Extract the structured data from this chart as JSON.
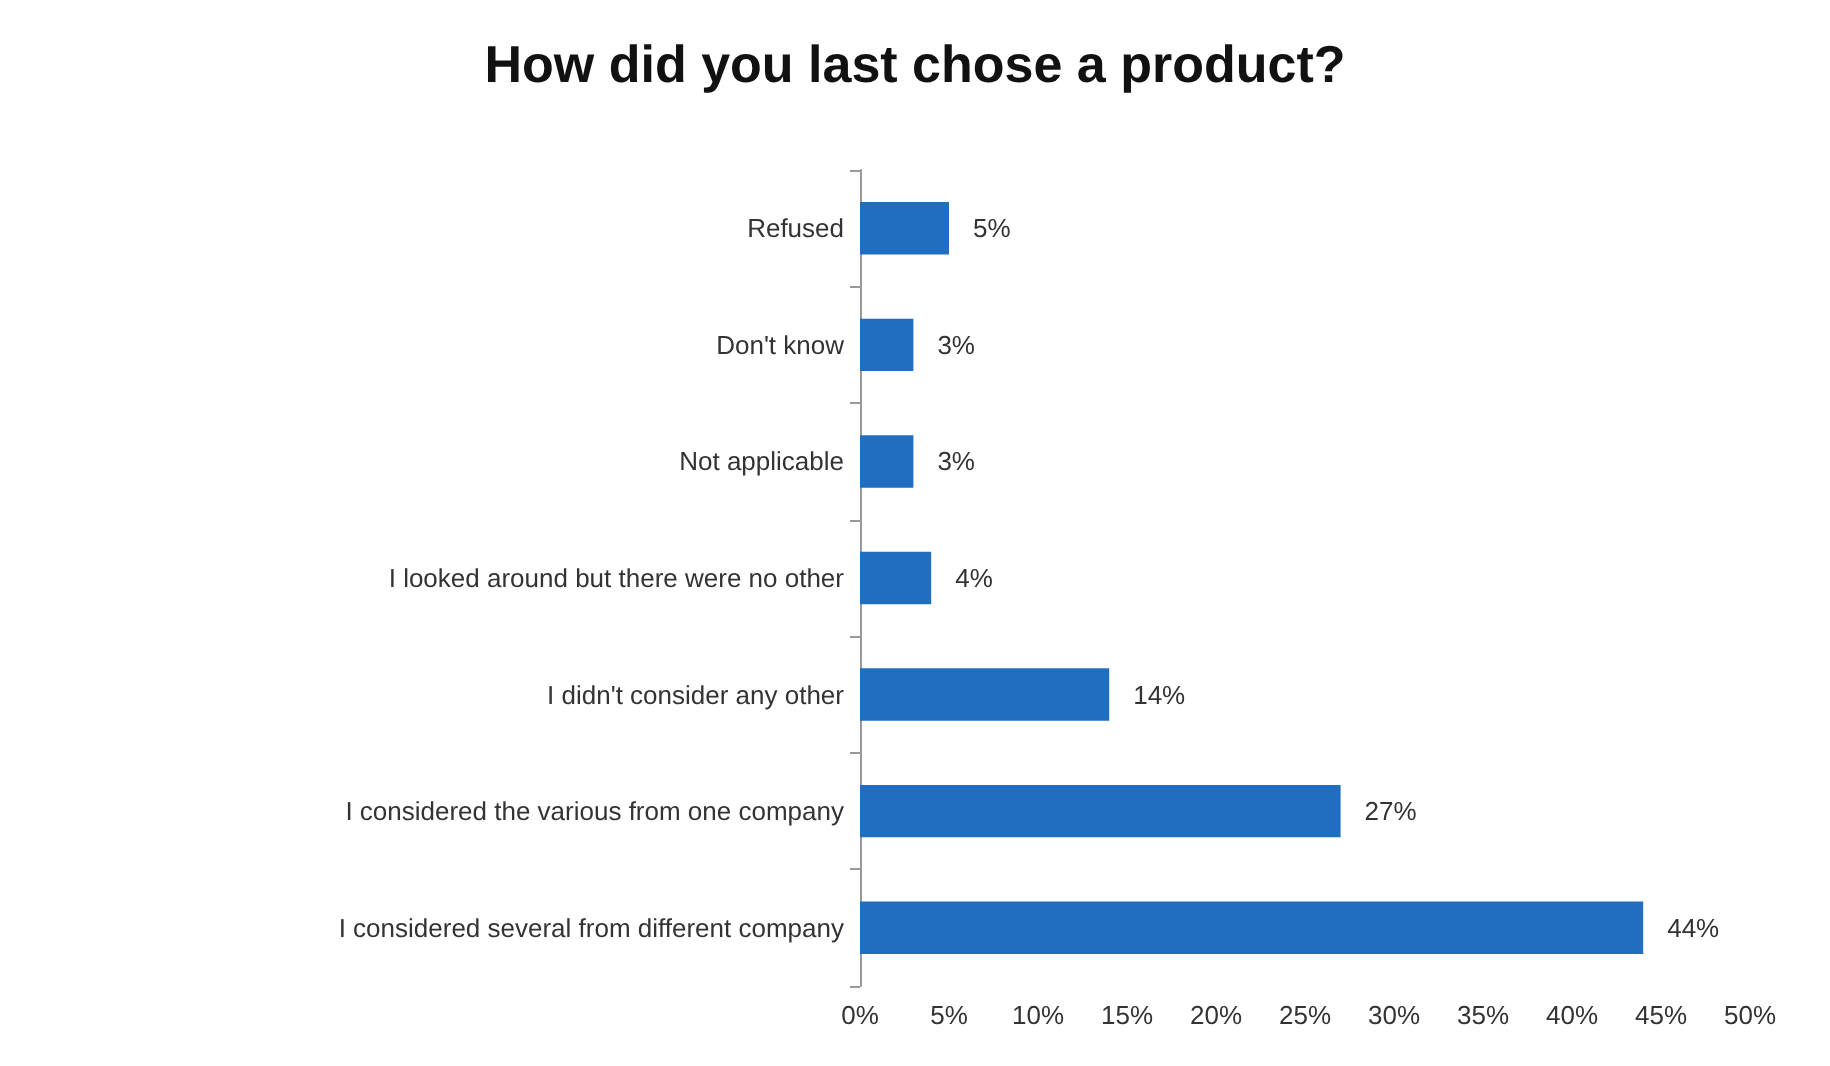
{
  "chart_data": {
    "type": "bar",
    "orientation": "horizontal",
    "title": "How did you last chose a product?",
    "categories": [
      "Refused",
      "Don't know",
      "Not applicable",
      "I looked around but there were no other",
      "I didn't consider any other",
      "I considered the various from one company",
      "I considered several from different company"
    ],
    "values": [
      5,
      3,
      3,
      4,
      14,
      27,
      44
    ],
    "value_labels": [
      "5%",
      "3%",
      "3%",
      "4%",
      "14%",
      "27%",
      "44%"
    ],
    "color": "#1f6ebf",
    "xlim": [
      0,
      50
    ],
    "xticks": [
      {
        "value": 0,
        "label": "0%"
      },
      {
        "value": 5,
        "label": "5%"
      },
      {
        "value": 10,
        "label": "10%"
      },
      {
        "value": 15,
        "label": "15%"
      },
      {
        "value": 20,
        "label": "20%"
      },
      {
        "value": 25,
        "label": "25%"
      },
      {
        "value": 30,
        "label": "30%"
      },
      {
        "value": 35,
        "label": "35%"
      },
      {
        "value": 40,
        "label": "40%"
      },
      {
        "value": 45,
        "label": "45%"
      },
      {
        "value": 50,
        "label": "50%"
      }
    ],
    "grid": false
  }
}
